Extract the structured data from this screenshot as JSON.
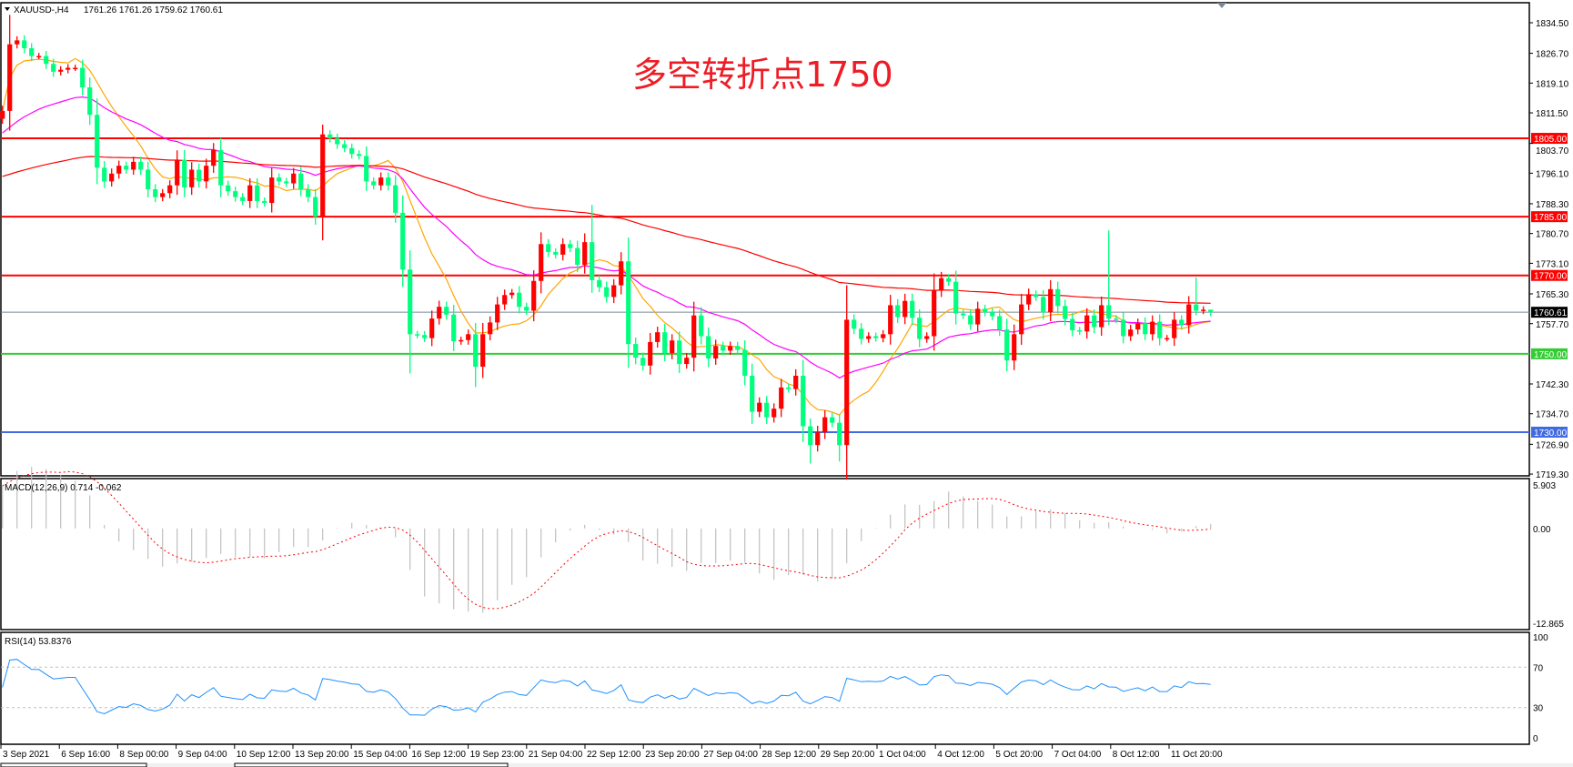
{
  "header": {
    "menu_icon": "triangle-down-icon",
    "symbol": "XAUUSD-,H4",
    "ohlc": "1761.26 1761.26 1759.62 1760.61"
  },
  "annotation": "多空转折点1750",
  "colors": {
    "bull": "#ff0000",
    "bear": "#00ff7f",
    "ma_fast": "#ffa500",
    "ma_mid": "#ff00ff",
    "ma_slow": "#ff0000",
    "resistance": "#ff0000",
    "pivot": "#32cd32",
    "support": "#4169e1",
    "current": "#778899",
    "macd_hist": "#c0c0c0",
    "macd_signal": "#ff0000",
    "rsi": "#1e90ff"
  },
  "chart_data": [
    {
      "type": "candlestick",
      "symbol": "XAUUSD-",
      "timeframe": "H4",
      "ylim": [
        1719.3,
        1838
      ],
      "y_ticks": [
        "1834.50",
        "1826.70",
        "1819.10",
        "1811.50",
        "1803.70",
        "1796.10",
        "1788.30",
        "1780.70",
        "1773.10",
        "1765.30",
        "1757.70",
        "1742.30",
        "1734.70",
        "1726.90",
        "1719.30"
      ],
      "x_ticks": [
        "3 Sep 2021",
        "6 Sep 16:00",
        "8 Sep 00:00",
        "9 Sep 04:00",
        "10 Sep 12:00",
        "13 Sep 20:00",
        "15 Sep 04:00",
        "16 Sep 12:00",
        "19 Sep 23:00",
        "21 Sep 04:00",
        "22 Sep 12:00",
        "23 Sep 20:00",
        "27 Sep 04:00",
        "28 Sep 12:00",
        "29 Sep 20:00",
        "1 Oct 04:00",
        "4 Oct 12:00",
        "5 Oct 20:00",
        "7 Oct 04:00",
        "8 Oct 12:00",
        "11 Oct 20:00"
      ],
      "first_open": 1810,
      "close": [
        1812,
        1829,
        1830,
        1828,
        1826,
        1826,
        1824,
        1822,
        1822.5,
        1823,
        1823,
        1818,
        1811,
        1797.5,
        1794,
        1796,
        1798,
        1797,
        1799,
        1797,
        1792,
        1790,
        1791,
        1793,
        1799.5,
        1792.5,
        1797,
        1794,
        1798,
        1802,
        1793,
        1791.5,
        1790,
        1789,
        1793,
        1789,
        1788.5,
        1795,
        1794,
        1793.5,
        1796,
        1792,
        1790,
        1785,
        1806,
        1805,
        1803.5,
        1802.5,
        1801,
        1800.5,
        1794,
        1793,
        1795,
        1793,
        1786,
        1771.5,
        1755,
        1754.8,
        1754,
        1759,
        1762,
        1760,
        1753.2,
        1753.5,
        1755,
        1746.7,
        1755,
        1758,
        1762.6,
        1765,
        1765.6,
        1762,
        1761,
        1768.6,
        1778,
        1776,
        1775.3,
        1778,
        1777,
        1772.7,
        1778.5,
        1768.8,
        1767,
        1764.5,
        1767.5,
        1773.6,
        1752.5,
        1749,
        1747,
        1753,
        1755.5,
        1750.2,
        1753.4,
        1747.4,
        1749,
        1759.8,
        1754.5,
        1748.8,
        1752,
        1750.8,
        1752,
        1751,
        1744.4,
        1735.2,
        1737.5,
        1733.8,
        1736,
        1741.4,
        1741,
        1744.4,
        1731.5,
        1726.7,
        1730,
        1733.8,
        1732.4,
        1726.7,
        1758.7,
        1756.4,
        1753.8,
        1754.5,
        1754,
        1755,
        1762.4,
        1759.4,
        1763.5,
        1759.2,
        1753.8,
        1754.5,
        1766.1,
        1769.3,
        1768.4,
        1760.3,
        1759.8,
        1757.5,
        1761.5,
        1760.6,
        1759.6,
        1756.2,
        1748.3,
        1755,
        1762.6,
        1765.2,
        1764.5,
        1760.6,
        1766.5,
        1762.2,
        1758.9,
        1756,
        1755.7,
        1759.8,
        1756.8,
        1762.4,
        1759,
        1758.7,
        1754.5,
        1756.2,
        1757.8,
        1755,
        1758.2,
        1754,
        1754,
        1758.7,
        1757.3,
        1762.6,
        1761,
        1761.26,
        1760.61
      ],
      "notable_highs": {
        "1": 1836.5,
        "44": 1808.5,
        "74": 1781,
        "81": 1788,
        "128": 1770.5,
        "152": 1781.5,
        "164": 1769.5
      },
      "notable_lows": {
        "56": 1745,
        "65": 1741.5,
        "111": 1722,
        "115": 1722.5
      },
      "last_bar": {
        "open": 1761.26,
        "high": 1761.26,
        "low": 1759.62,
        "close": 1760.61
      },
      "current_price": "1760.61",
      "levels": [
        {
          "label": "1805.00",
          "kind": "resistance"
        },
        {
          "label": "1785.00",
          "kind": "resistance"
        },
        {
          "label": "1770.00",
          "kind": "resistance"
        },
        {
          "label": "1750.00",
          "kind": "pivot"
        },
        {
          "label": "1730.00",
          "kind": "support"
        }
      ],
      "moving_averages": [
        "ma_fast",
        "ma_mid",
        "ma_slow"
      ]
    },
    {
      "type": "macd",
      "label": "MACD(12,26,9) 0.714 -0.062",
      "ylim": [
        -12.865,
        5.903
      ],
      "y_ticks": [
        "5.903",
        "0.00",
        "-12.865"
      ]
    },
    {
      "type": "line",
      "label": "RSI(14) 53.8376",
      "ylim": [
        0,
        100
      ],
      "y_ticks": [
        "100",
        "70",
        "30",
        "0"
      ],
      "levels": [
        70,
        30
      ]
    }
  ]
}
